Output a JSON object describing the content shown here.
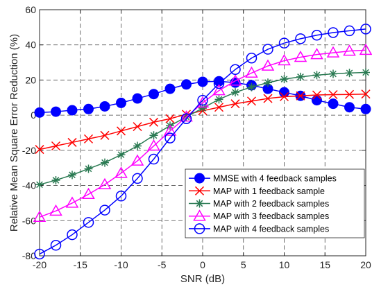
{
  "chart_data": {
    "type": "line",
    "title": "",
    "xlabel": "SNR (dB)",
    "ylabel": "Relative Mean Square Error Reduction (%)",
    "xlim": [
      -20,
      20
    ],
    "ylim": [
      -80,
      60
    ],
    "xticks": [
      -20,
      -15,
      -10,
      -5,
      0,
      5,
      10,
      15,
      20
    ],
    "yticks": [
      -80,
      -60,
      -40,
      -20,
      0,
      20,
      40,
      60
    ],
    "grid": true,
    "legend_position": "bottom-right",
    "x": [
      -20,
      -18,
      -16,
      -14,
      -12,
      -10,
      -8,
      -6,
      -4,
      -2,
      0,
      2,
      4,
      6,
      8,
      10,
      12,
      14,
      16,
      18,
      20
    ],
    "series": [
      {
        "name": "MMSE with 4 feedback samples",
        "color": "#0000ff",
        "marker": "filled-circle",
        "values": [
          1.5,
          2,
          2.8,
          3.5,
          5,
          7,
          9.5,
          12,
          15,
          17.5,
          19,
          19.3,
          18.5,
          17,
          15,
          13,
          11,
          8.5,
          6.5,
          4.5,
          3.5
        ]
      },
      {
        "name": "MAP with 1 feedback sample",
        "color": "#ff0000",
        "marker": "x",
        "values": [
          -19.5,
          -17.5,
          -15.5,
          -13.5,
          -11.5,
          -9,
          -6.5,
          -4,
          -2,
          0.5,
          2.5,
          4.5,
          6.5,
          8,
          9.5,
          10.5,
          11,
          11.5,
          11.7,
          11.8,
          12
        ]
      },
      {
        "name": "MAP with 2 feedback samples",
        "color": "#2a7a52",
        "marker": "asterisk",
        "values": [
          -39.5,
          -37,
          -34,
          -30.5,
          -27,
          -22.5,
          -17.5,
          -11.5,
          -6,
          -1,
          4,
          9,
          13,
          16,
          18.5,
          20.5,
          21.8,
          22.8,
          23.5,
          24,
          24.3
        ]
      },
      {
        "name": "MAP with 3 feedback samples",
        "color": "#ff00ff",
        "marker": "triangle",
        "values": [
          -58,
          -54.5,
          -50,
          -45,
          -39.5,
          -33,
          -26,
          -17.5,
          -9,
          -1,
          7,
          14,
          19.5,
          24,
          28,
          31,
          33,
          34.5,
          35.5,
          36.5,
          37
        ]
      },
      {
        "name": "MAP with 4 feedback samples",
        "color": "#0000ff",
        "marker": "open-circle",
        "values": [
          -79,
          -74,
          -68,
          -61,
          -54,
          -46,
          -36,
          -25,
          -13,
          -2,
          8.5,
          18,
          26,
          32.5,
          37.5,
          41,
          43.5,
          45.5,
          47,
          48,
          49
        ]
      }
    ]
  }
}
